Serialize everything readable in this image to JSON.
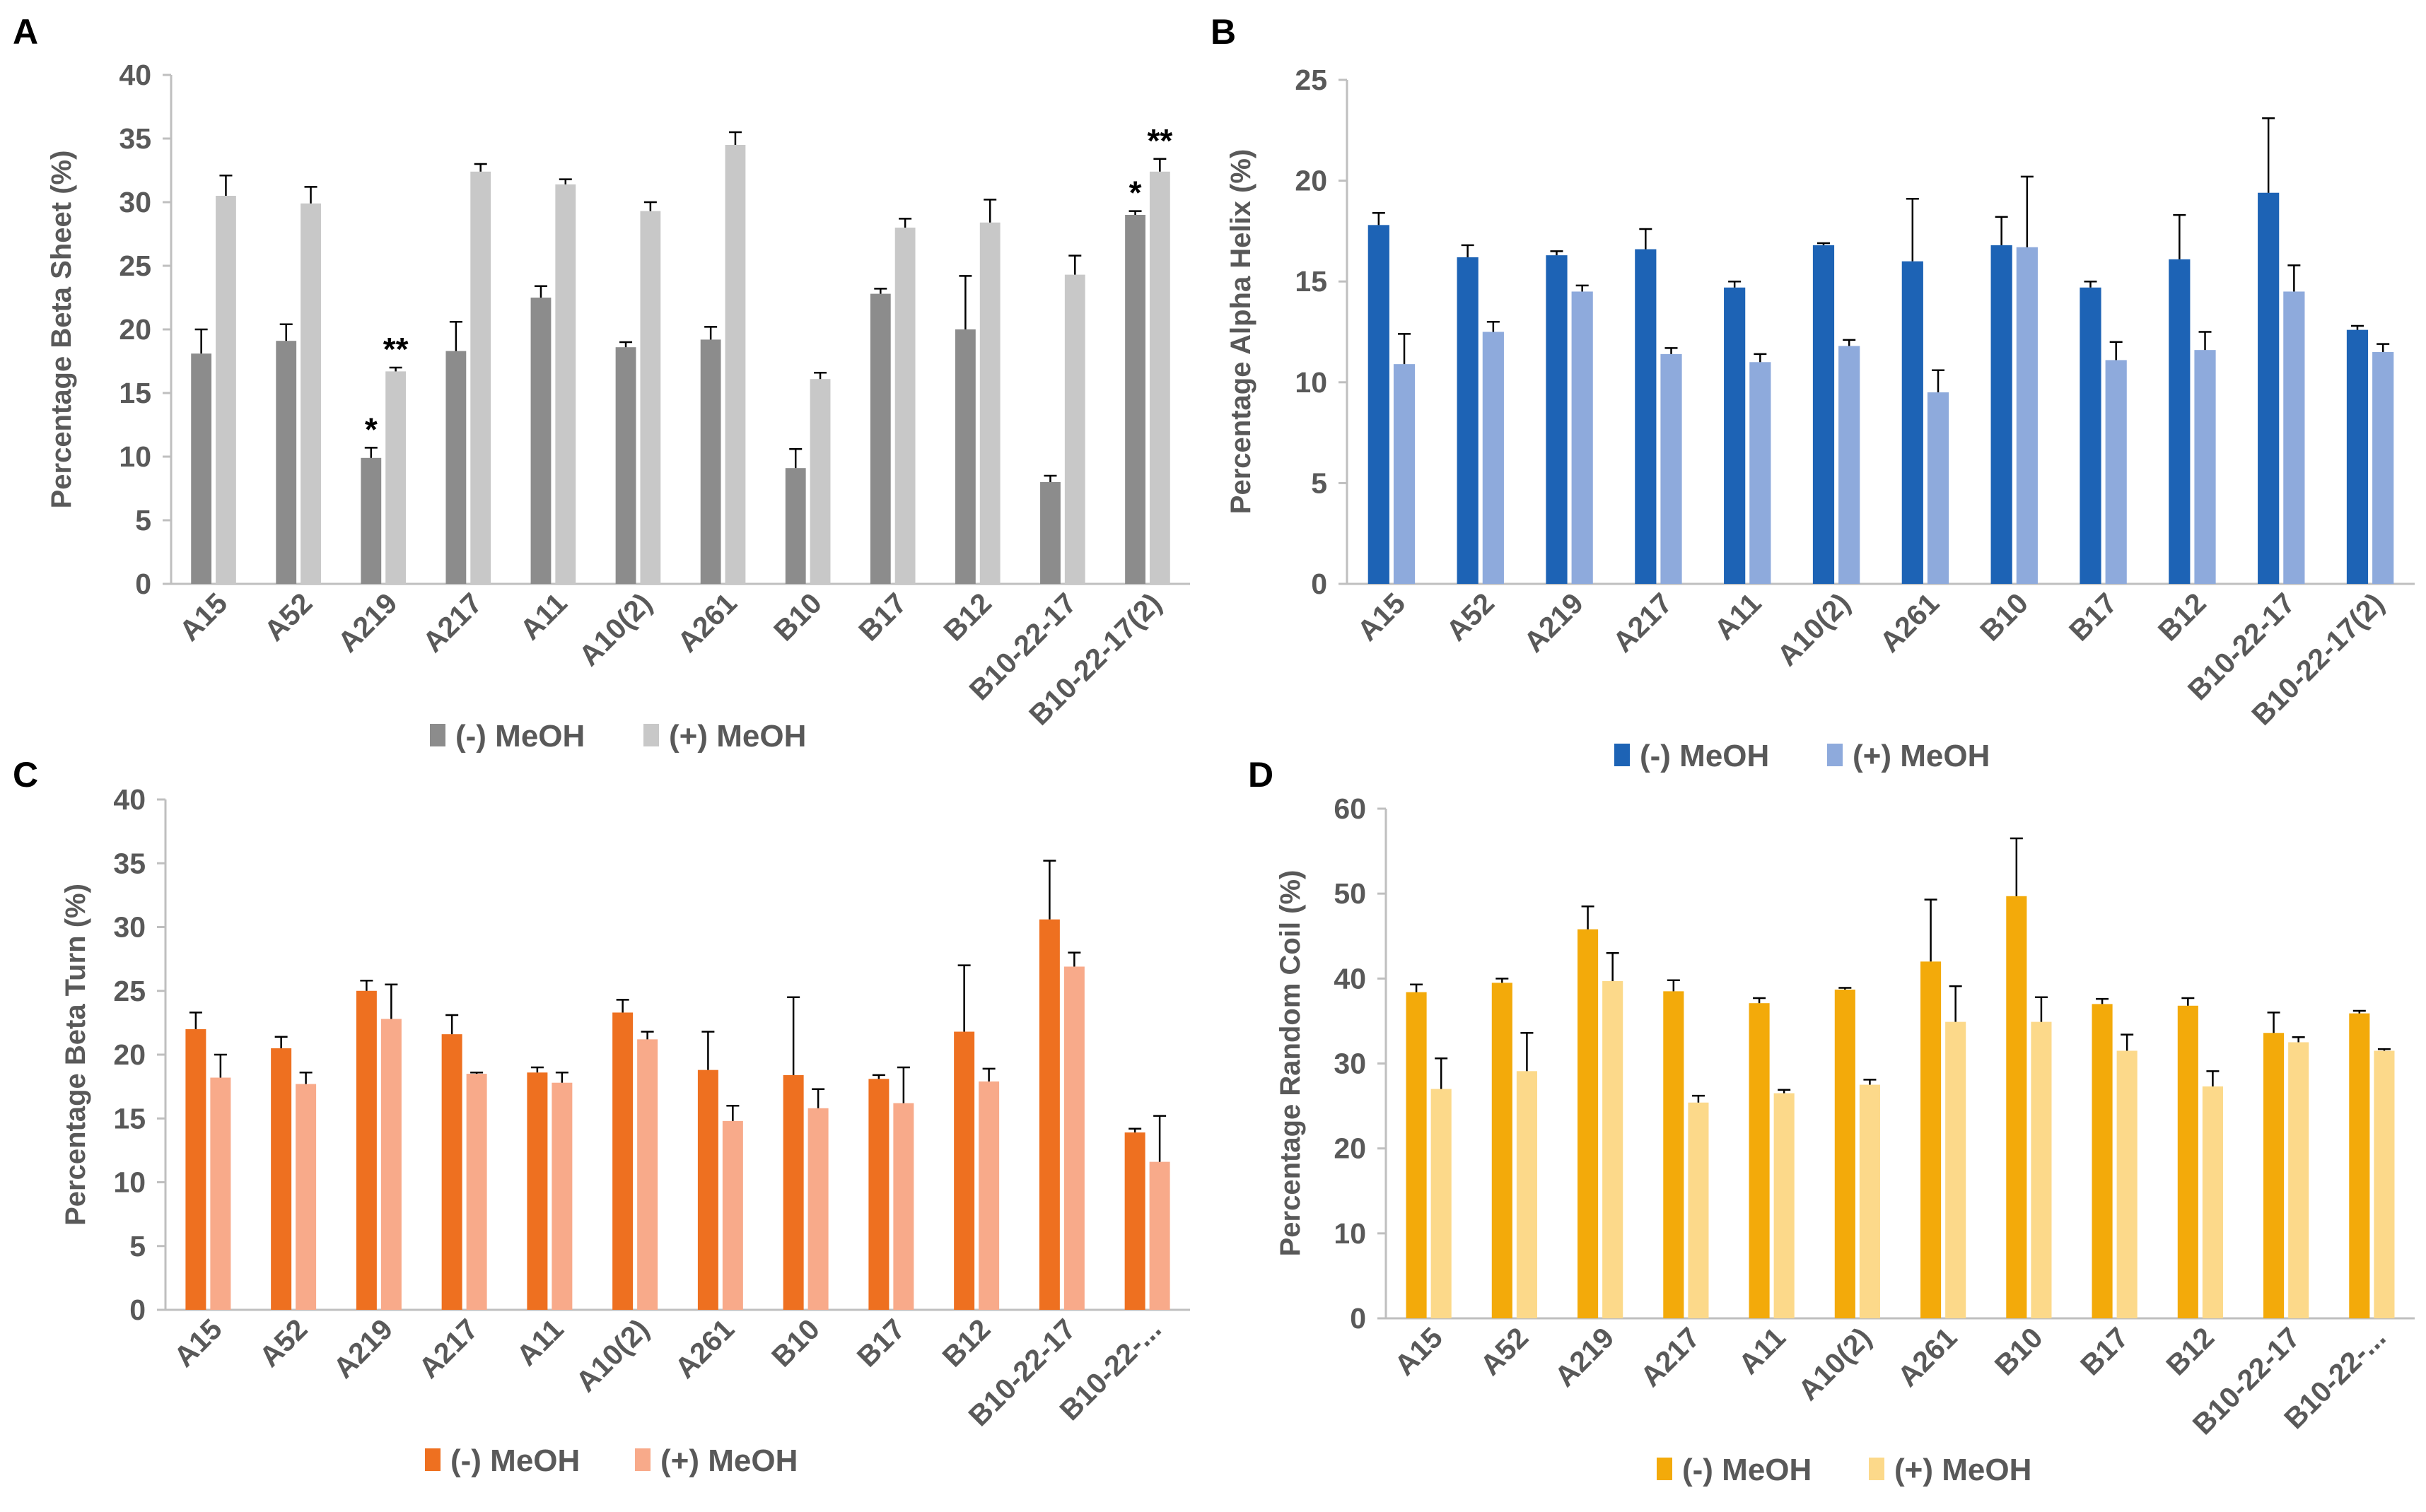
{
  "chart_data": [
    {
      "panel": "A",
      "type": "bar",
      "ylabel": "Percentage Beta Sheet (%)",
      "ylim": [
        0,
        40
      ],
      "yticks": [
        0,
        5,
        10,
        15,
        20,
        25,
        30,
        35,
        40
      ],
      "categories": [
        "A15",
        "A52",
        "A219",
        "A217",
        "A11",
        "A10(2)",
        "A261",
        "B10",
        "B17",
        "B12",
        "B10-22-17",
        "B10-22-17(2)"
      ],
      "series": [
        {
          "name": "(-) MeOH",
          "color": "#8c8c8c",
          "values": [
            18.1,
            19.1,
            9.9,
            18.3,
            22.5,
            18.6,
            19.2,
            9.1,
            22.8,
            20.0,
            8.0,
            29.0
          ],
          "errors": [
            1.9,
            1.3,
            0.8,
            2.3,
            0.9,
            0.4,
            1.0,
            1.5,
            0.4,
            4.2,
            0.5,
            0.3
          ]
        },
        {
          "name": "(+) MeOH",
          "color": "#c8c8c8",
          "values": [
            30.5,
            29.9,
            16.7,
            32.4,
            31.4,
            29.3,
            34.5,
            16.1,
            28.0,
            28.4,
            24.3,
            32.4
          ],
          "errors": [
            1.6,
            1.3,
            0.3,
            0.6,
            0.4,
            0.7,
            1.0,
            0.5,
            0.7,
            1.8,
            1.5,
            1.0
          ]
        }
      ],
      "annotations": [
        {
          "text": "*",
          "category": "A219",
          "series": 0
        },
        {
          "text": "**",
          "category": "A219",
          "series": 1
        },
        {
          "text": "*",
          "category": "B10-22-17(2)",
          "series": 0
        },
        {
          "text": "**",
          "category": "B10-22-17(2)",
          "series": 1
        }
      ],
      "legend": [
        "(-) MeOH",
        "(+) MeOH"
      ]
    },
    {
      "panel": "B",
      "type": "bar",
      "ylabel": "Percentage Alpha Helix (%)",
      "ylim": [
        0,
        25
      ],
      "yticks": [
        0,
        5,
        10,
        15,
        20,
        25
      ],
      "categories": [
        "A15",
        "A52",
        "A219",
        "A217",
        "A11",
        "A10(2)",
        "A261",
        "B10",
        "B17",
        "B12",
        "B10-22-17",
        "B10-22-17(2)"
      ],
      "series": [
        {
          "name": "(-) MeOH",
          "color": "#1d63b5",
          "values": [
            17.8,
            16.2,
            16.3,
            16.6,
            14.7,
            16.8,
            16.0,
            16.8,
            14.7,
            16.1,
            19.4,
            12.6
          ],
          "errors": [
            0.6,
            0.6,
            0.2,
            1.0,
            0.3,
            0.1,
            3.1,
            1.4,
            0.3,
            2.2,
            3.7,
            0.2
          ]
        },
        {
          "name": "(+) MeOH",
          "color": "#8eaadc",
          "values": [
            10.9,
            12.5,
            14.5,
            11.4,
            11.0,
            11.8,
            9.5,
            16.7,
            11.1,
            11.6,
            14.5,
            11.5
          ],
          "errors": [
            1.5,
            0.5,
            0.3,
            0.3,
            0.4,
            0.3,
            1.1,
            3.5,
            0.9,
            0.9,
            1.3,
            0.4
          ]
        }
      ],
      "legend": [
        "(-) MeOH",
        "(+) MeOH"
      ]
    },
    {
      "panel": "C",
      "type": "bar",
      "ylabel": "Percentage Beta Turn (%)",
      "ylim": [
        0,
        40
      ],
      "yticks": [
        0,
        5,
        10,
        15,
        20,
        25,
        30,
        35,
        40
      ],
      "categories": [
        "A15",
        "A52",
        "A219",
        "A217",
        "A11",
        "A10(2)",
        "A261",
        "B10",
        "B17",
        "B12",
        "B10-22-17",
        "B10-22-..."
      ],
      "series": [
        {
          "name": "(-) MeOH",
          "color": "#ee7020",
          "values": [
            22.0,
            20.5,
            25.0,
            21.6,
            18.6,
            23.3,
            18.8,
            18.4,
            18.1,
            21.8,
            30.6,
            13.9
          ],
          "errors": [
            1.3,
            0.9,
            0.8,
            1.5,
            0.4,
            1.0,
            3.0,
            6.1,
            0.3,
            5.2,
            4.6,
            0.3
          ]
        },
        {
          "name": "(+) MeOH",
          "color": "#f8aa8a",
          "values": [
            18.2,
            17.7,
            22.8,
            18.5,
            17.8,
            21.2,
            14.8,
            15.8,
            16.2,
            17.9,
            26.9,
            11.6
          ],
          "errors": [
            1.8,
            0.9,
            2.7,
            0.1,
            0.8,
            0.6,
            1.2,
            1.5,
            2.8,
            1.0,
            1.1,
            3.6
          ]
        }
      ],
      "legend": [
        "(-) MeOH",
        "(+) MeOH"
      ]
    },
    {
      "panel": "D",
      "type": "bar",
      "ylabel": "Percentage Random Coil (%)",
      "ylim": [
        0,
        60
      ],
      "yticks": [
        0,
        10,
        20,
        30,
        40,
        50,
        60
      ],
      "categories": [
        "A15",
        "A52",
        "A219",
        "A217",
        "A11",
        "A10(2)",
        "A261",
        "B10",
        "B17",
        "B12",
        "B10-22-17",
        "B10-22-..."
      ],
      "series": [
        {
          "name": "(-) MeOH",
          "color": "#f3aa0a",
          "values": [
            38.4,
            39.5,
            45.8,
            38.5,
            37.1,
            38.7,
            42.0,
            49.7,
            37.0,
            36.8,
            33.6,
            35.9
          ],
          "errors": [
            0.9,
            0.5,
            2.7,
            1.3,
            0.6,
            0.2,
            7.3,
            6.8,
            0.6,
            0.9,
            2.4,
            0.3
          ]
        },
        {
          "name": "(+) MeOH",
          "color": "#fcd98a",
          "values": [
            27.0,
            29.1,
            39.7,
            25.4,
            26.5,
            27.5,
            34.9,
            34.9,
            31.5,
            27.3,
            32.5,
            31.5
          ],
          "errors": [
            3.6,
            4.5,
            3.3,
            0.8,
            0.4,
            0.6,
            4.2,
            2.9,
            1.9,
            1.8,
            0.6,
            0.2
          ]
        }
      ],
      "legend": [
        "(-) MeOH",
        "(+) MeOH"
      ]
    }
  ]
}
